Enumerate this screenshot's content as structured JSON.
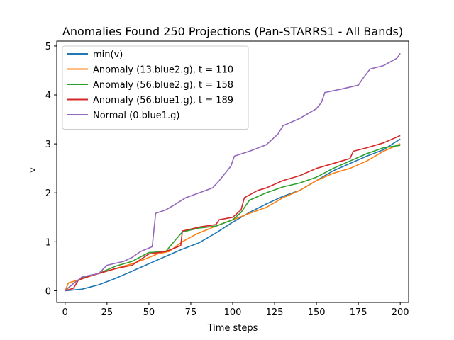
{
  "chart_data": {
    "type": "line",
    "title": "Anomalies Found 250 Projections (Pan-STARRS1 - All Bands)",
    "xlabel": "Time steps",
    "ylabel": "v",
    "xlim": [
      -5,
      205
    ],
    "ylim": [
      -0.24,
      5.1
    ],
    "xticks": [
      0,
      25,
      50,
      75,
      100,
      125,
      150,
      175,
      200
    ],
    "yticks": [
      0,
      1,
      2,
      3,
      4,
      5
    ],
    "grid": false,
    "legend_position": "top-left",
    "series": [
      {
        "name": "min(v)",
        "color": "#1f77b4",
        "points": [
          [
            0,
            0
          ],
          [
            10,
            0.03
          ],
          [
            20,
            0.12
          ],
          [
            30,
            0.25
          ],
          [
            40,
            0.4
          ],
          [
            50,
            0.55
          ],
          [
            60,
            0.7
          ],
          [
            70,
            0.85
          ],
          [
            80,
            0.98
          ],
          [
            90,
            1.18
          ],
          [
            100,
            1.4
          ],
          [
            110,
            1.6
          ],
          [
            120,
            1.77
          ],
          [
            130,
            1.93
          ],
          [
            140,
            2.05
          ],
          [
            150,
            2.25
          ],
          [
            160,
            2.45
          ],
          [
            170,
            2.6
          ],
          [
            180,
            2.75
          ],
          [
            190,
            2.88
          ],
          [
            200,
            3.1
          ]
        ]
      },
      {
        "name": "Anomaly (13.blue2.g), t = 110",
        "color": "#ff7f0e",
        "points": [
          [
            0,
            0
          ],
          [
            2,
            0.16
          ],
          [
            10,
            0.24
          ],
          [
            15,
            0.3
          ],
          [
            20,
            0.35
          ],
          [
            30,
            0.45
          ],
          [
            40,
            0.55
          ],
          [
            48,
            0.65
          ],
          [
            55,
            0.75
          ],
          [
            62,
            0.8
          ],
          [
            70,
            1.0
          ],
          [
            78,
            1.15
          ],
          [
            85,
            1.25
          ],
          [
            90,
            1.32
          ],
          [
            100,
            1.45
          ],
          [
            110,
            1.58
          ],
          [
            120,
            1.7
          ],
          [
            130,
            1.9
          ],
          [
            140,
            2.05
          ],
          [
            150,
            2.25
          ],
          [
            160,
            2.4
          ],
          [
            170,
            2.5
          ],
          [
            180,
            2.65
          ],
          [
            190,
            2.85
          ],
          [
            200,
            3.0
          ]
        ]
      },
      {
        "name": "Anomaly (56.blue2.g), t = 158",
        "color": "#2ca02c",
        "points": [
          [
            0,
            0
          ],
          [
            5,
            0.15
          ],
          [
            10,
            0.27
          ],
          [
            20,
            0.35
          ],
          [
            30,
            0.5
          ],
          [
            40,
            0.6
          ],
          [
            50,
            0.78
          ],
          [
            60,
            0.8
          ],
          [
            70,
            1.2
          ],
          [
            80,
            1.28
          ],
          [
            90,
            1.32
          ],
          [
            100,
            1.45
          ],
          [
            105,
            1.6
          ],
          [
            110,
            1.85
          ],
          [
            120,
            2.0
          ],
          [
            130,
            2.12
          ],
          [
            140,
            2.2
          ],
          [
            150,
            2.32
          ],
          [
            160,
            2.5
          ],
          [
            170,
            2.65
          ],
          [
            180,
            2.8
          ],
          [
            190,
            2.92
          ],
          [
            200,
            2.97
          ]
        ]
      },
      {
        "name": "Anomaly (56.blue1.g), t = 189",
        "color": "#d62728",
        "points": [
          [
            0,
            0
          ],
          [
            5,
            0.05
          ],
          [
            8,
            0.22
          ],
          [
            15,
            0.3
          ],
          [
            20,
            0.35
          ],
          [
            30,
            0.45
          ],
          [
            40,
            0.52
          ],
          [
            50,
            0.75
          ],
          [
            60,
            0.8
          ],
          [
            69,
            0.92
          ],
          [
            70,
            1.22
          ],
          [
            80,
            1.3
          ],
          [
            90,
            1.35
          ],
          [
            92,
            1.45
          ],
          [
            100,
            1.5
          ],
          [
            105,
            1.65
          ],
          [
            107,
            1.9
          ],
          [
            115,
            2.05
          ],
          [
            120,
            2.1
          ],
          [
            130,
            2.25
          ],
          [
            140,
            2.35
          ],
          [
            150,
            2.5
          ],
          [
            160,
            2.6
          ],
          [
            170,
            2.7
          ],
          [
            172,
            2.85
          ],
          [
            180,
            2.92
          ],
          [
            190,
            3.02
          ],
          [
            200,
            3.17
          ]
        ]
      },
      {
        "name": "Normal (0.blue1.g)",
        "color": "#9467bd",
        "points": [
          [
            0,
            0
          ],
          [
            5,
            0.15
          ],
          [
            8,
            0.22
          ],
          [
            10,
            0.28
          ],
          [
            20,
            0.35
          ],
          [
            25,
            0.52
          ],
          [
            35,
            0.6
          ],
          [
            40,
            0.68
          ],
          [
            45,
            0.8
          ],
          [
            52,
            0.9
          ],
          [
            54,
            1.58
          ],
          [
            60,
            1.65
          ],
          [
            65,
            1.75
          ],
          [
            72,
            1.9
          ],
          [
            80,
            2.0
          ],
          [
            88,
            2.1
          ],
          [
            92,
            2.25
          ],
          [
            96,
            2.42
          ],
          [
            99,
            2.55
          ],
          [
            101,
            2.75
          ],
          [
            110,
            2.85
          ],
          [
            120,
            2.98
          ],
          [
            127,
            3.2
          ],
          [
            130,
            3.37
          ],
          [
            140,
            3.52
          ],
          [
            150,
            3.72
          ],
          [
            153,
            3.85
          ],
          [
            155,
            4.05
          ],
          [
            165,
            4.12
          ],
          [
            175,
            4.2
          ],
          [
            178,
            4.35
          ],
          [
            182,
            4.53
          ],
          [
            190,
            4.6
          ],
          [
            198,
            4.75
          ],
          [
            200,
            4.85
          ]
        ]
      }
    ]
  }
}
